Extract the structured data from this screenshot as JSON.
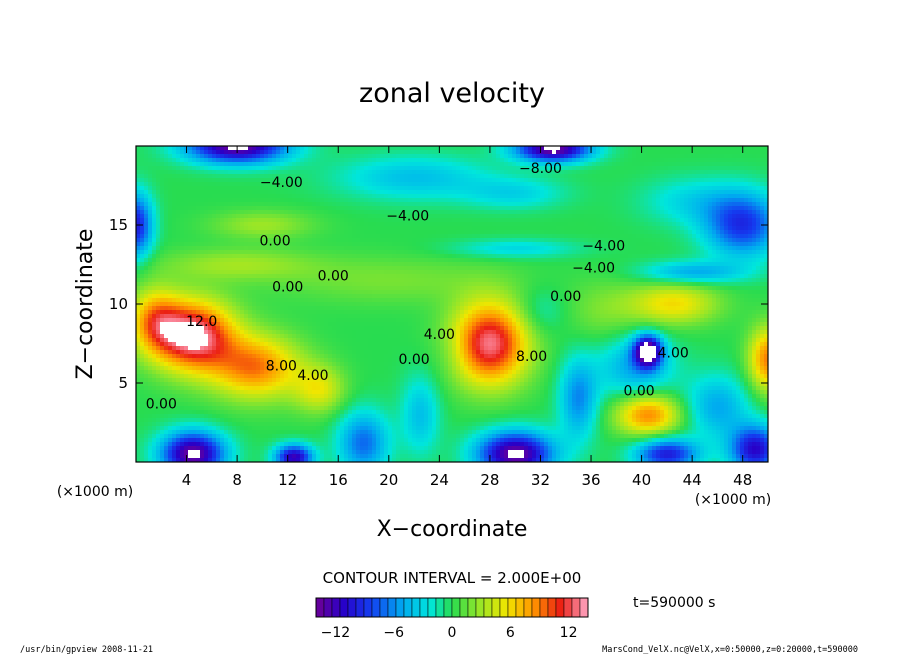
{
  "chart_data": {
    "type": "heatmap",
    "title": "zonal velocity",
    "xlabel": "X−coordinate",
    "ylabel": "Z−coordinate",
    "x_unit": "(×1000 m)",
    "y_unit": "(×1000 m)",
    "xlim": [
      0,
      50
    ],
    "ylim": [
      0,
      20
    ],
    "x_ticks": [
      4,
      8,
      12,
      16,
      20,
      24,
      28,
      32,
      36,
      40,
      44,
      48
    ],
    "y_ticks": [
      5,
      10,
      15
    ],
    "color_range": [
      -14,
      14
    ],
    "colorbar_ticks": [
      {
        "value": -12,
        "label": "−12"
      },
      {
        "value": -6,
        "label": "−6"
      },
      {
        "value": 0,
        "label": "0"
      },
      {
        "value": 6,
        "label": "6"
      },
      {
        "value": 12,
        "label": "12"
      }
    ],
    "contour_interval_text": "CONTOUR INTERVAL = 2.000E+00",
    "time_label": "t=590000 s",
    "footer_left": "/usr/bin/gpview   2008-11-21",
    "footer_right": "MarsCond_VelX.nc@VelX,x=0:50000,z=0:20000,t=590000",
    "contour_labels": [
      {
        "x": 11.5,
        "z": 17.4,
        "text": "−4.00"
      },
      {
        "x": 32.0,
        "z": 18.3,
        "text": "−8.00"
      },
      {
        "x": 21.5,
        "z": 15.3,
        "text": "−4.00"
      },
      {
        "x": 11.0,
        "z": 13.7,
        "text": "0.00"
      },
      {
        "x": 37.0,
        "z": 13.4,
        "text": "−4.00"
      },
      {
        "x": 36.2,
        "z": 12.0,
        "text": "−4.00"
      },
      {
        "x": 12.0,
        "z": 10.8,
        "text": "0.00"
      },
      {
        "x": 15.6,
        "z": 11.5,
        "text": "0.00"
      },
      {
        "x": 34.0,
        "z": 10.2,
        "text": "0.00"
      },
      {
        "x": 5.2,
        "z": 8.6,
        "text": "12.0"
      },
      {
        "x": 11.5,
        "z": 5.8,
        "text": "8.00"
      },
      {
        "x": 14.0,
        "z": 5.2,
        "text": "4.00"
      },
      {
        "x": 22.0,
        "z": 6.2,
        "text": "0.00"
      },
      {
        "x": 24.0,
        "z": 7.8,
        "text": "4.00"
      },
      {
        "x": 31.3,
        "z": 6.4,
        "text": "8.00"
      },
      {
        "x": 42.5,
        "z": 6.6,
        "text": "4.00"
      },
      {
        "x": 39.8,
        "z": 4.2,
        "text": "0.00"
      },
      {
        "x": 2.0,
        "z": 3.4,
        "text": "0.00"
      }
    ],
    "field_features": [
      {
        "x": 4.5,
        "z": 8.0,
        "value": 14,
        "sx": 3.2,
        "sz": 2.2
      },
      {
        "x": 9.5,
        "z": 6.0,
        "value": 9,
        "sx": 3.5,
        "sz": 2.0
      },
      {
        "x": 14.5,
        "z": 4.6,
        "value": 5,
        "sx": 2.0,
        "sz": 1.5
      },
      {
        "x": 1.5,
        "z": 9.0,
        "value": 7,
        "sx": 2.0,
        "sz": 2.0
      },
      {
        "x": 28.0,
        "z": 7.5,
        "value": 13,
        "sx": 3.0,
        "sz": 2.6
      },
      {
        "x": 40.5,
        "z": 3.0,
        "value": 9,
        "sx": 2.5,
        "sz": 1.3
      },
      {
        "x": 50.0,
        "z": 6.5,
        "value": 9,
        "sx": 1.5,
        "sz": 2.0
      },
      {
        "x": 42.5,
        "z": 10.0,
        "value": 6,
        "sx": 3.5,
        "sz": 1.3
      },
      {
        "x": 37.0,
        "z": 9.5,
        "value": 2,
        "sx": 3.0,
        "sz": 2.0
      },
      {
        "x": 20.0,
        "z": 11.5,
        "value": 2,
        "sx": 9.0,
        "sz": 1.5
      },
      {
        "x": 10.0,
        "z": 15.0,
        "value": 3,
        "sx": 4.0,
        "sz": 0.9
      },
      {
        "x": 8.0,
        "z": 12.5,
        "value": 3,
        "sx": 6.0,
        "sz": 1.0
      },
      {
        "x": 40.5,
        "z": 7.0,
        "value": -14,
        "sx": 1.1,
        "sz": 1.0
      },
      {
        "x": 39.5,
        "z": 6.0,
        "value": -5,
        "sx": 3.0,
        "sz": 2.0
      },
      {
        "x": 4.5,
        "z": 0.5,
        "value": -14,
        "sx": 2.5,
        "sz": 1.4
      },
      {
        "x": 30.0,
        "z": 0.5,
        "value": -14,
        "sx": 3.0,
        "sz": 1.4
      },
      {
        "x": 18.0,
        "z": 1.2,
        "value": -7,
        "sx": 2.0,
        "sz": 2.0
      },
      {
        "x": 22.5,
        "z": 3.0,
        "value": -4,
        "sx": 1.5,
        "sz": 2.5
      },
      {
        "x": 12.5,
        "z": 0.3,
        "value": -12,
        "sx": 1.5,
        "sz": 0.8
      },
      {
        "x": 35.0,
        "z": 4.0,
        "value": -6,
        "sx": 1.5,
        "sz": 2.5
      },
      {
        "x": 46.0,
        "z": 3.5,
        "value": -5,
        "sx": 2.5,
        "sz": 2.0
      },
      {
        "x": 42.0,
        "z": 0.5,
        "value": -10,
        "sx": 2.5,
        "sz": 1.0
      },
      {
        "x": 49.0,
        "z": 0.8,
        "value": -11,
        "sx": 2.0,
        "sz": 1.5
      },
      {
        "x": 8.0,
        "z": 20.0,
        "value": -14,
        "sx": 4.0,
        "sz": 1.1
      },
      {
        "x": 33.0,
        "z": 19.8,
        "value": -14,
        "sx": 3.0,
        "sz": 0.8
      },
      {
        "x": 0.0,
        "z": 15.0,
        "value": -10,
        "sx": 1.3,
        "sz": 2.0
      },
      {
        "x": 48.0,
        "z": 15.0,
        "value": -9,
        "sx": 3.0,
        "sz": 2.0
      },
      {
        "x": 22.0,
        "z": 18.0,
        "value": -4,
        "sx": 6.0,
        "sz": 1.4
      },
      {
        "x": 30.0,
        "z": 17.0,
        "value": -3,
        "sx": 4.0,
        "sz": 1.0
      },
      {
        "x": 44.0,
        "z": 16.5,
        "value": -3,
        "sx": 4.0,
        "sz": 1.5
      },
      {
        "x": 30.0,
        "z": 13.5,
        "value": -3,
        "sx": 5.0,
        "sz": 0.6
      },
      {
        "x": 44.0,
        "z": 12.0,
        "value": -5,
        "sx": 4.0,
        "sz": 0.7
      },
      {
        "x": 32.0,
        "z": 9.5,
        "value": -2,
        "sx": 2.0,
        "sz": 1.5
      },
      {
        "x": 25.0,
        "z": 7.0,
        "value": -1,
        "sx": 1.5,
        "sz": 1.5
      }
    ]
  }
}
